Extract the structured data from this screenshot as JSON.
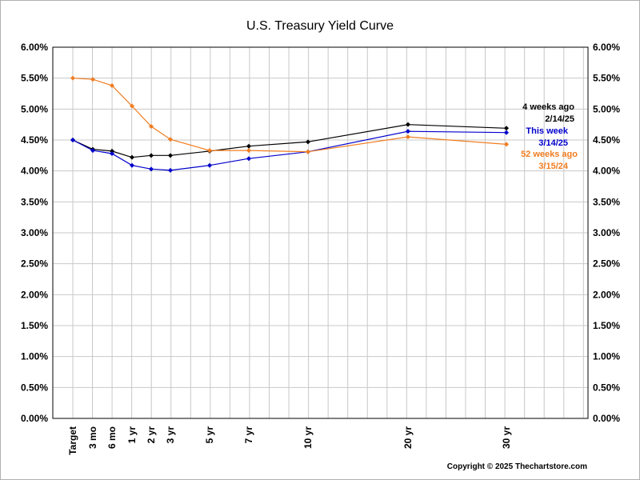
{
  "chart_data": {
    "type": "line",
    "title": "U.S. Treasury Yield Curve",
    "xlabel": "",
    "ylabel": "",
    "ylim": [
      0,
      6
    ],
    "yticks": [
      "0.00%",
      "0.50%",
      "1.00%",
      "1.50%",
      "2.00%",
      "2.50%",
      "3.00%",
      "3.50%",
      "4.00%",
      "4.50%",
      "5.00%",
      "5.50%",
      "6.00%"
    ],
    "grid": true,
    "legend_position": "right",
    "x_months": [
      0,
      3,
      6,
      12,
      24,
      36,
      60,
      84,
      120,
      240,
      360
    ],
    "xticks": [
      {
        "label": "Target",
        "months": 0
      },
      {
        "label": "3 mo",
        "months": 3
      },
      {
        "label": "6 mo",
        "months": 6
      },
      {
        "label": "1 yr",
        "months": 12
      },
      {
        "label": "2 yr",
        "months": 24
      },
      {
        "label": "3 yr",
        "months": 36
      },
      {
        "label": "5 yr",
        "months": 60
      },
      {
        "label": "7 yr",
        "months": 84
      },
      {
        "label": "10 yr",
        "months": 120
      },
      {
        "label": "20 yr",
        "months": 240
      },
      {
        "label": "30 yr",
        "months": 360
      }
    ],
    "series": [
      {
        "legend_lines": [
          "4 weeks ago",
          "2/14/25"
        ],
        "color": "#000000",
        "values": [
          4.5,
          4.35,
          4.32,
          4.22,
          4.25,
          4.25,
          4.32,
          4.4,
          4.47,
          4.75,
          4.69
        ]
      },
      {
        "legend_lines": [
          "This week",
          "3/14/25"
        ],
        "color": "#0000cc",
        "values": [
          4.5,
          4.33,
          4.28,
          4.09,
          4.03,
          4.01,
          4.09,
          4.2,
          4.31,
          4.64,
          4.62
        ]
      },
      {
        "legend_lines": [
          "52 weeks ago",
          "3/15/24"
        ],
        "color": "#f07d21",
        "values": [
          5.5,
          5.48,
          5.38,
          5.05,
          4.72,
          4.51,
          4.33,
          4.33,
          4.31,
          4.55,
          4.43
        ]
      }
    ],
    "copyright": "Copyright © 2025 Thechartstore.com"
  }
}
